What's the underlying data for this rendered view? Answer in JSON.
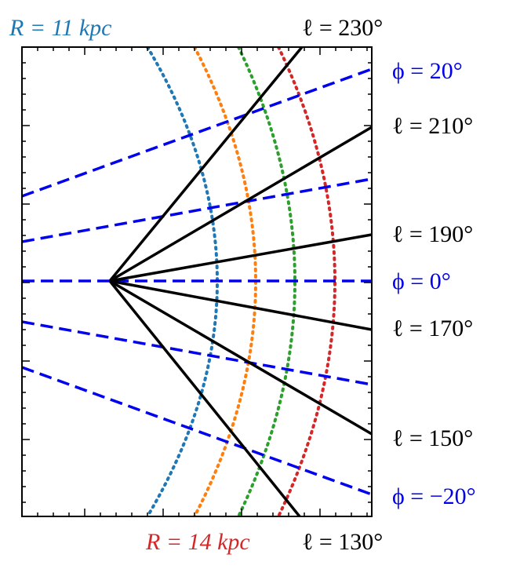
{
  "labels": {
    "r_inner": "R = 11 kpc",
    "r_outer": "R = 14 kpc",
    "l230": "ℓ = 230°",
    "l210": "ℓ = 210°",
    "l190": "ℓ = 190°",
    "l170": "ℓ = 170°",
    "l150": "ℓ = 150°",
    "l130": "ℓ = 130°",
    "phi_pos": "ϕ = 20°",
    "phi_zero": "ϕ = 0°",
    "phi_neg": "ϕ = −20°"
  }
}
